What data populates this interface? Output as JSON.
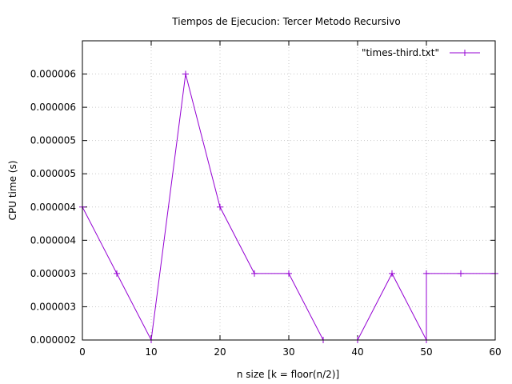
{
  "chart_data": {
    "type": "line",
    "title": "Tiempos de Ejecucion: Tercer Metodo Recursivo",
    "xlabel": "n size [k = floor(n/2)]",
    "ylabel": "CPU time (s)",
    "xlim": [
      0,
      60
    ],
    "ylim": [
      2e-06,
      6.5e-06
    ],
    "x_ticks": [
      0,
      10,
      20,
      30,
      40,
      50,
      60
    ],
    "y_ticks": [
      {
        "value": 2e-06,
        "label": "0.000002"
      },
      {
        "value": 2.5e-06,
        "label": "0.000003"
      },
      {
        "value": 3e-06,
        "label": "0.000003"
      },
      {
        "value": 3.5e-06,
        "label": "0.000004"
      },
      {
        "value": 4e-06,
        "label": "0.000004"
      },
      {
        "value": 4.5e-06,
        "label": "0.000005"
      },
      {
        "value": 5e-06,
        "label": "0.000005"
      },
      {
        "value": 5.5e-06,
        "label": "0.000006"
      },
      {
        "value": 6e-06,
        "label": "0.000006"
      }
    ],
    "grid": true,
    "legend_position": "top-right",
    "series": [
      {
        "name": "\"times-third.txt\"",
        "color": "#9400d3",
        "marker": "plus",
        "x": [
          0,
          5,
          10,
          15,
          20,
          25,
          30,
          35,
          40,
          45,
          50,
          50,
          55,
          60
        ],
        "y": [
          4e-06,
          3e-06,
          2e-06,
          6e-06,
          4e-06,
          3e-06,
          3e-06,
          2e-06,
          2e-06,
          3e-06,
          2e-06,
          3e-06,
          3e-06,
          3e-06
        ]
      }
    ]
  }
}
